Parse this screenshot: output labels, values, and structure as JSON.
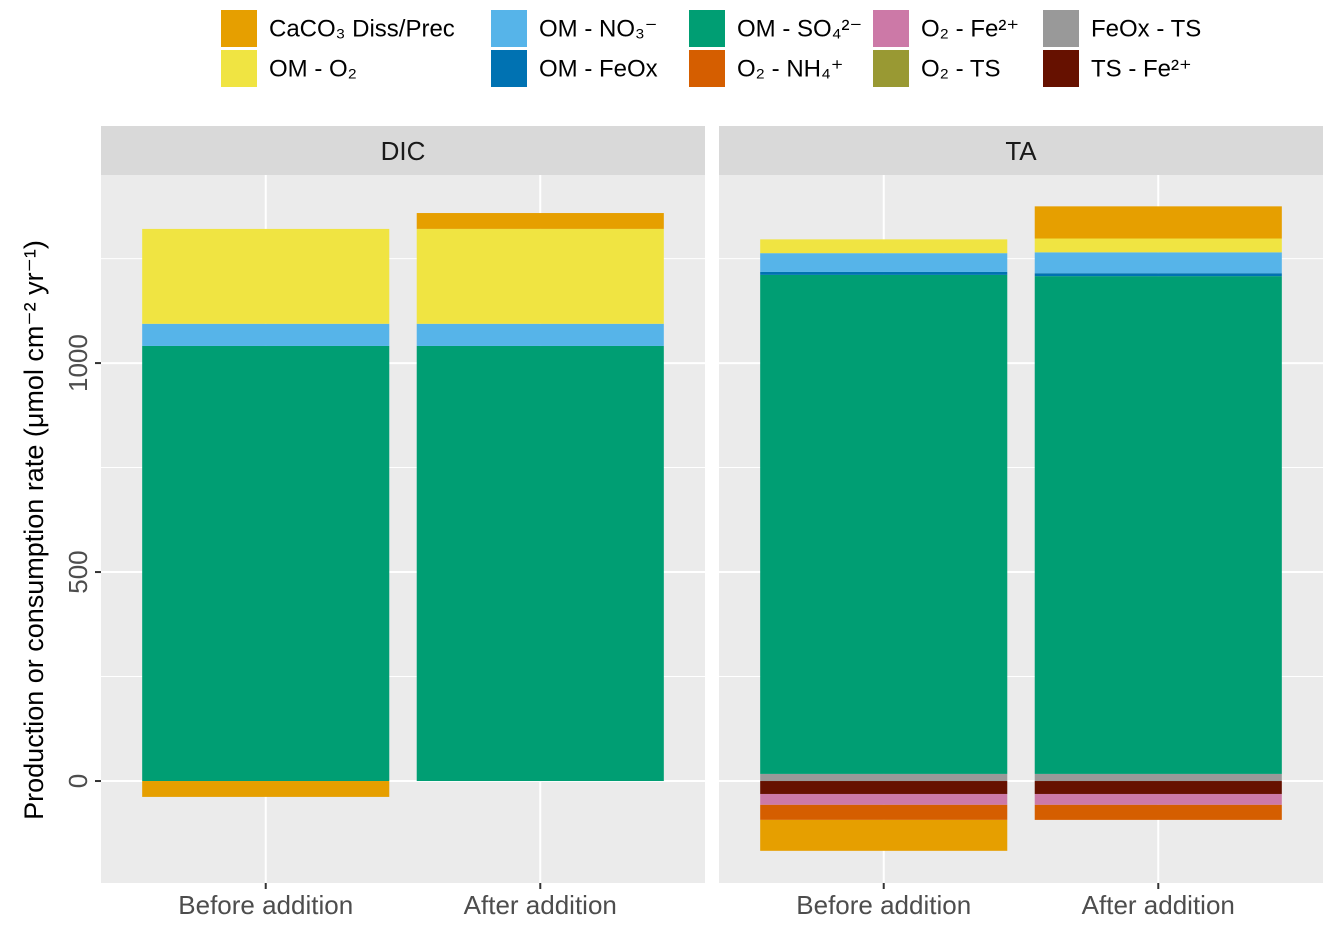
{
  "chart_data": {
    "type": "bar",
    "stacked": true,
    "y_label": "Production or consumption rate (μmol  cm⁻² yr⁻¹)",
    "facets": [
      "DIC",
      "TA"
    ],
    "categories": [
      "Before addition",
      "After addition"
    ],
    "ylim": [
      -244,
      1450
    ],
    "yticks": [
      0,
      500,
      1000
    ],
    "yminor": [
      250,
      750,
      1250
    ],
    "grid": true,
    "legend": "top",
    "series": [
      {
        "name": "CaCO₃ Diss/Prec",
        "color": "#E69F00",
        "values": [
          [
            -38,
            38
          ],
          [
            -74,
            77
          ]
        ]
      },
      {
        "name": "OM - O₂",
        "color": "#F0E442",
        "values": [
          [
            227,
            227
          ],
          [
            33,
            33
          ]
        ]
      },
      {
        "name": "OM - NO₃⁻",
        "color": "#56B4E9",
        "values": [
          [
            53,
            53
          ],
          [
            45,
            50
          ]
        ]
      },
      {
        "name": "OM - FeOx",
        "color": "#0072B2",
        "values": [
          [
            0,
            0
          ],
          [
            7,
            7
          ]
        ]
      },
      {
        "name": "OM - SO₄²⁻",
        "color": "#009E73",
        "values": [
          [
            1041,
            1041
          ],
          [
            1194,
            1191
          ]
        ]
      },
      {
        "name": "O₂ - NH₄⁺",
        "color": "#D55E00",
        "values": [
          [
            0,
            0
          ],
          [
            -36,
            -36
          ]
        ]
      },
      {
        "name": "O₂ - Fe²⁺",
        "color": "#CC79A7",
        "values": [
          [
            0,
            0
          ],
          [
            -26,
            -26
          ]
        ]
      },
      {
        "name": "O₂ - TS",
        "color": "#999933",
        "values": [
          [
            0,
            0
          ],
          [
            0,
            0
          ]
        ]
      },
      {
        "name": "FeOx - TS",
        "color": "#999999",
        "values": [
          [
            0,
            0
          ],
          [
            17,
            17
          ]
        ]
      },
      {
        "name": "TS - Fe²⁺",
        "color": "#661100",
        "values": [
          [
            0,
            0
          ],
          [
            -31,
            -31
          ]
        ]
      }
    ]
  }
}
